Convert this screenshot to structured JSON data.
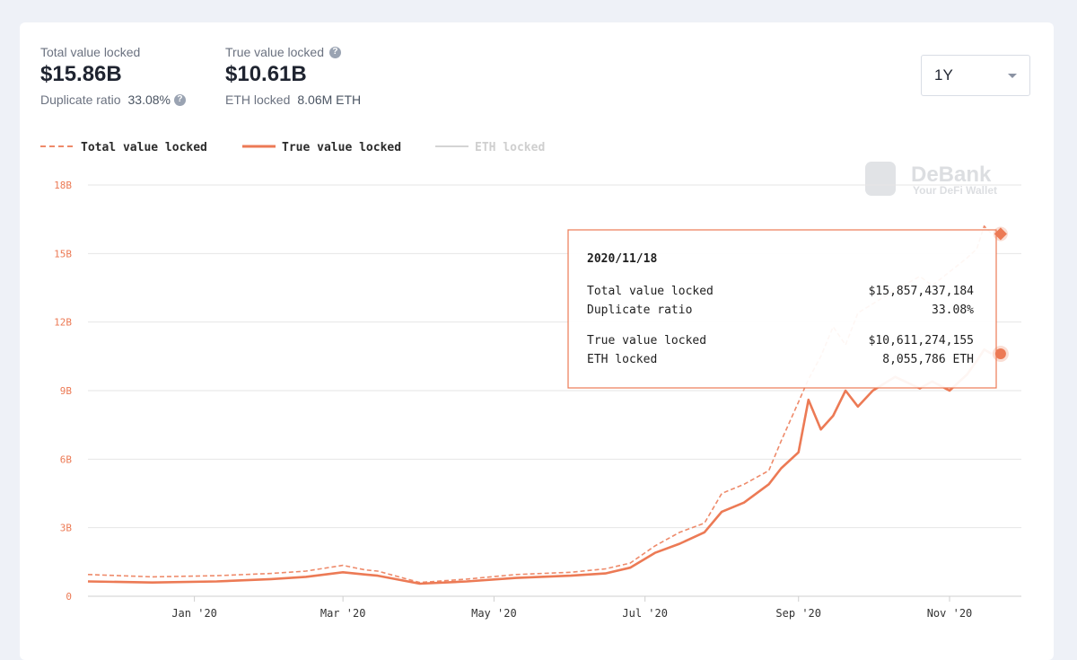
{
  "stats": {
    "tvl_label": "Total value locked",
    "tvl_value": "$15.86B",
    "dup_label": "Duplicate ratio",
    "dup_value": "33.08%",
    "true_label": "True value locked",
    "true_value": "$10.61B",
    "eth_label": "ETH locked",
    "eth_value": "8.06M ETH",
    "help_icon": "?"
  },
  "range_select": {
    "value": "1Y",
    "icon": "chevron-down-icon"
  },
  "watermark": {
    "name": "DeBank",
    "tagline": "Your DeFi Wallet"
  },
  "legend": [
    {
      "label": "Total value locked",
      "style": "dashed",
      "color": "#ee8a6a"
    },
    {
      "label": "True value locked",
      "style": "solid",
      "color": "#ec7a55"
    },
    {
      "label": "ETH locked",
      "style": "solid",
      "color": "#d4d4d4"
    }
  ],
  "tooltip": {
    "date": "2020/11/18",
    "rows1": [
      {
        "label": "Total value locked",
        "value": "$15,857,437,184"
      },
      {
        "label": "Duplicate ratio",
        "value": "33.08%"
      }
    ],
    "rows2": [
      {
        "label": "True value locked",
        "value": "$10,611,274,155"
      },
      {
        "label": "ETH locked",
        "value": "8,055,786 ETH"
      }
    ]
  },
  "chart_data": {
    "type": "line",
    "y_ticks": [
      "0",
      "3B",
      "6B",
      "9B",
      "12B",
      "15B",
      "18B"
    ],
    "ylim": [
      0,
      18
    ],
    "x_ticks": [
      "Jan '20",
      "Mar '20",
      "May '20",
      "Jul '20",
      "Sep '20",
      "Nov '20"
    ],
    "series": [
      {
        "name": "Total value locked",
        "x": [
          "2019-11-19",
          "2019-12-15",
          "2020-01-10",
          "2020-02-01",
          "2020-02-15",
          "2020-03-01",
          "2020-03-10",
          "2020-03-15",
          "2020-04-01",
          "2020-04-20",
          "2020-05-10",
          "2020-06-01",
          "2020-06-15",
          "2020-06-25",
          "2020-07-05",
          "2020-07-15",
          "2020-07-25",
          "2020-08-01",
          "2020-08-10",
          "2020-08-20",
          "2020-08-25",
          "2020-09-01",
          "2020-09-05",
          "2020-09-10",
          "2020-09-15",
          "2020-09-20",
          "2020-09-25",
          "2020-10-01",
          "2020-10-10",
          "2020-10-20",
          "2020-10-25",
          "2020-11-01",
          "2020-11-08",
          "2020-11-12",
          "2020-11-15",
          "2020-11-18"
        ],
        "y": [
          0.95,
          0.85,
          0.9,
          1.0,
          1.1,
          1.35,
          1.15,
          1.1,
          0.6,
          0.75,
          0.95,
          1.05,
          1.2,
          1.45,
          2.2,
          2.8,
          3.2,
          4.5,
          4.9,
          5.5,
          6.8,
          8.5,
          9.5,
          10.5,
          11.8,
          11.0,
          12.4,
          12.8,
          13.4,
          14.0,
          13.6,
          14.2,
          14.8,
          15.2,
          16.2,
          15.86
        ]
      },
      {
        "name": "True value locked",
        "x": [
          "2019-11-19",
          "2019-12-15",
          "2020-01-10",
          "2020-02-01",
          "2020-02-15",
          "2020-03-01",
          "2020-03-10",
          "2020-03-15",
          "2020-04-01",
          "2020-04-20",
          "2020-05-10",
          "2020-06-01",
          "2020-06-15",
          "2020-06-25",
          "2020-07-05",
          "2020-07-15",
          "2020-07-25",
          "2020-08-01",
          "2020-08-10",
          "2020-08-20",
          "2020-08-25",
          "2020-09-01",
          "2020-09-05",
          "2020-09-10",
          "2020-09-15",
          "2020-09-20",
          "2020-09-25",
          "2020-10-01",
          "2020-10-10",
          "2020-10-20",
          "2020-10-25",
          "2020-11-01",
          "2020-11-08",
          "2020-11-12",
          "2020-11-15",
          "2020-11-18"
        ],
        "y": [
          0.65,
          0.6,
          0.65,
          0.75,
          0.85,
          1.05,
          0.95,
          0.9,
          0.55,
          0.65,
          0.8,
          0.9,
          1.0,
          1.25,
          1.9,
          2.3,
          2.8,
          3.7,
          4.1,
          4.9,
          5.6,
          6.3,
          8.6,
          7.3,
          7.9,
          9.0,
          8.3,
          9.0,
          9.6,
          9.1,
          9.4,
          9.0,
          9.7,
          10.3,
          10.8,
          10.61
        ]
      }
    ]
  }
}
